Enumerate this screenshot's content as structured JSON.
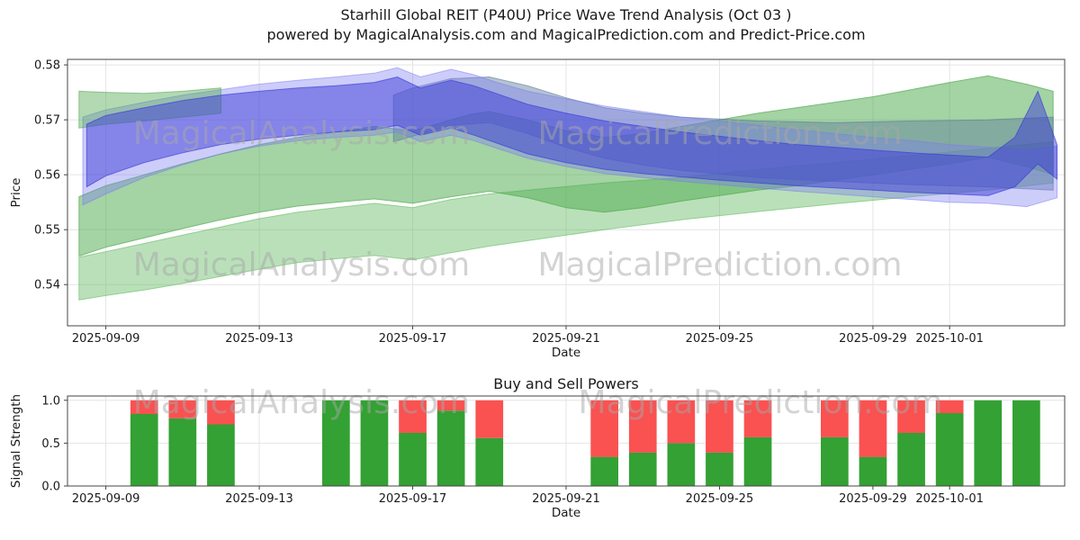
{
  "title": {
    "line1": "Starhill Global REIT (P40U) Price Wave Trend Analysis (Oct 03 )",
    "line2": "powered by MagicalAnalysis.com and MagicalPrediction.com and Predict-Price.com"
  },
  "watermarks": {
    "analysis": "MagicalAnalysis.com",
    "prediction": "MagicalPrediction.com"
  },
  "colors": {
    "grid": "#e4e4e4",
    "spine": "#444444",
    "buy": "#33a133",
    "sell": "#fa5151",
    "tick_text": "#1a1a1a"
  },
  "chart_data": [
    {
      "type": "area",
      "title": "",
      "ylabel": "Price",
      "xlabel": "Date",
      "ylim": [
        0.5325,
        0.581
      ],
      "yticks": [
        0.54,
        0.55,
        0.56,
        0.57,
        0.58
      ],
      "x_domain": [
        "2025-09-08",
        "2025-10-04"
      ],
      "xticks": [
        "2025-09-09",
        "2025-09-13",
        "2025-09-17",
        "2025-09-21",
        "2025-09-25",
        "2025-09-29",
        "2025-10-01"
      ],
      "grid": true,
      "legend": "none",
      "bands": [
        {
          "name": "green-lower",
          "color": "#66bb66",
          "opacity": 0.45,
          "d": [
            0.3,
            1,
            2,
            3,
            4,
            5,
            6,
            7,
            8,
            9,
            10,
            11,
            12,
            14,
            16,
            18,
            20,
            22,
            24,
            25.7
          ],
          "lo": [
            0.5372,
            0.538,
            0.539,
            0.5402,
            0.5415,
            0.5428,
            0.544,
            0.5447,
            0.5453,
            0.5445,
            0.5458,
            0.547,
            0.548,
            0.55,
            0.5518,
            0.5533,
            0.5547,
            0.556,
            0.5572,
            0.5585
          ],
          "hi": [
            0.545,
            0.546,
            0.5475,
            0.549,
            0.5505,
            0.552,
            0.5532,
            0.554,
            0.5548,
            0.554,
            0.5555,
            0.5565,
            0.5572,
            0.5585,
            0.5595,
            0.561,
            0.5622,
            0.5635,
            0.5648,
            0.566
          ]
        },
        {
          "name": "green-mid",
          "color": "#4aa84a",
          "opacity": 0.5,
          "d": [
            0.3,
            1,
            2,
            3,
            4,
            5,
            6,
            7,
            8,
            9,
            10,
            10.5,
            11,
            12,
            13,
            14,
            15,
            16,
            17,
            18,
            19,
            20,
            21,
            22,
            23,
            24,
            25,
            25.7
          ],
          "lo": [
            0.5452,
            0.5468,
            0.5485,
            0.5502,
            0.5518,
            0.5532,
            0.5543,
            0.555,
            0.5556,
            0.5548,
            0.556,
            0.5565,
            0.557,
            0.5558,
            0.554,
            0.5532,
            0.554,
            0.5552,
            0.5562,
            0.5572,
            0.558,
            0.559,
            0.56,
            0.561,
            0.562,
            0.5632,
            0.5615,
            0.56
          ],
          "hi": [
            0.556,
            0.558,
            0.56,
            0.562,
            0.5638,
            0.5655,
            0.5668,
            0.5678,
            0.5688,
            0.568,
            0.57,
            0.571,
            0.5715,
            0.57,
            0.568,
            0.5668,
            0.5675,
            0.5688,
            0.57,
            0.5712,
            0.5722,
            0.5732,
            0.5742,
            0.5755,
            0.5768,
            0.578,
            0.5765,
            0.5752
          ]
        },
        {
          "name": "slate-descend",
          "color": "#5a7a9a",
          "opacity": 0.45,
          "d": [
            8.5,
            9,
            10,
            11,
            12,
            13,
            14,
            15,
            16,
            18,
            20,
            22,
            24,
            25.7
          ],
          "lo": [
            0.566,
            0.567,
            0.569,
            0.5695,
            0.5675,
            0.565,
            0.563,
            0.5618,
            0.5608,
            0.5595,
            0.5588,
            0.5582,
            0.5578,
            0.5572
          ],
          "hi": [
            0.5745,
            0.5758,
            0.5775,
            0.5778,
            0.5762,
            0.574,
            0.5722,
            0.5712,
            0.5705,
            0.5698,
            0.5695,
            0.5698,
            0.57,
            0.5705
          ]
        },
        {
          "name": "blue-wide",
          "color": "#7b7bf2",
          "opacity": 0.38,
          "d": [
            0.4,
            1,
            2,
            3,
            4,
            5,
            6,
            7,
            8,
            8.6,
            9.2,
            10,
            10.6,
            11.2,
            12,
            13,
            14,
            15,
            16,
            17,
            18,
            19,
            20,
            21,
            22,
            23,
            24,
            25,
            25.8
          ],
          "lo": [
            0.5545,
            0.5565,
            0.5595,
            0.5618,
            0.5638,
            0.5652,
            0.5662,
            0.5668,
            0.5672,
            0.5678,
            0.566,
            0.5672,
            0.5662,
            0.5648,
            0.563,
            0.5615,
            0.5602,
            0.5595,
            0.5588,
            0.5582,
            0.5576,
            0.557,
            0.5565,
            0.556,
            0.5555,
            0.555,
            0.5548,
            0.5542,
            0.5558
          ],
          "hi": [
            0.5705,
            0.5718,
            0.5732,
            0.5745,
            0.5755,
            0.5765,
            0.5772,
            0.5778,
            0.5785,
            0.5795,
            0.5778,
            0.5792,
            0.5782,
            0.5768,
            0.5752,
            0.5738,
            0.5725,
            0.5715,
            0.5705,
            0.5698,
            0.569,
            0.5682,
            0.5675,
            0.5668,
            0.5662,
            0.5655,
            0.565,
            0.5645,
            0.5652
          ]
        },
        {
          "name": "green-left-cap",
          "color": "#55aa55",
          "opacity": 0.45,
          "d": [
            0.3,
            1,
            2,
            3,
            4
          ],
          "lo": [
            0.5685,
            0.5692,
            0.5698,
            0.5705,
            0.5712
          ],
          "hi": [
            0.5752,
            0.575,
            0.5748,
            0.5752,
            0.5758
          ]
        },
        {
          "name": "blue-main",
          "color": "#3b3bd8",
          "opacity": 0.5,
          "d": [
            0.5,
            1,
            2,
            3,
            4,
            5,
            6,
            7,
            8,
            8.6,
            9.2,
            10,
            10.6,
            11.3,
            12,
            13,
            14,
            15,
            16,
            17,
            18,
            19,
            20,
            21,
            22,
            23,
            24,
            24.7,
            25.3,
            25.8
          ],
          "lo": [
            0.5578,
            0.5598,
            0.5622,
            0.564,
            0.5655,
            0.5665,
            0.5672,
            0.5678,
            0.5682,
            0.569,
            0.5672,
            0.5685,
            0.5672,
            0.5655,
            0.5638,
            0.5622,
            0.561,
            0.5602,
            0.5596,
            0.559,
            0.5585,
            0.558,
            0.5576,
            0.5572,
            0.5568,
            0.5565,
            0.5562,
            0.5578,
            0.562,
            0.5592
          ],
          "hi": [
            0.5692,
            0.5708,
            0.5722,
            0.5735,
            0.5745,
            0.5752,
            0.5758,
            0.5762,
            0.5768,
            0.5778,
            0.5758,
            0.5772,
            0.5762,
            0.5745,
            0.5728,
            0.5712,
            0.5698,
            0.5688,
            0.5678,
            0.567,
            0.5662,
            0.5655,
            0.565,
            0.5645,
            0.564,
            0.5636,
            0.5632,
            0.5668,
            0.5752,
            0.5655
          ]
        }
      ]
    },
    {
      "type": "bar",
      "title": "Buy and Sell Powers",
      "ylabel": "Signal Strength",
      "xlabel": "Date",
      "ylim": [
        0,
        1.05
      ],
      "yticks": [
        0.0,
        0.5,
        1.0
      ],
      "x_domain": [
        "2025-09-08",
        "2025-10-04"
      ],
      "xticks": [
        "2025-09-09",
        "2025-09-13",
        "2025-09-17",
        "2025-09-21",
        "2025-09-25",
        "2025-09-29",
        "2025-10-01"
      ],
      "grid": true,
      "stacked": true,
      "bars": [
        {
          "date": "2025-09-10",
          "buy": 0.84,
          "sell": 0.16
        },
        {
          "date": "2025-09-11",
          "buy": 0.79,
          "sell": 0.21
        },
        {
          "date": "2025-09-12",
          "buy": 0.72,
          "sell": 0.28
        },
        {
          "date": "2025-09-15",
          "buy": 1.0,
          "sell": 0.0
        },
        {
          "date": "2025-09-16",
          "buy": 1.0,
          "sell": 0.0
        },
        {
          "date": "2025-09-17",
          "buy": 0.62,
          "sell": 0.38
        },
        {
          "date": "2025-09-18",
          "buy": 0.88,
          "sell": 0.12
        },
        {
          "date": "2025-09-19",
          "buy": 0.56,
          "sell": 0.44
        },
        {
          "date": "2025-09-22",
          "buy": 0.34,
          "sell": 0.66
        },
        {
          "date": "2025-09-23",
          "buy": 0.39,
          "sell": 0.61
        },
        {
          "date": "2025-09-24",
          "buy": 0.5,
          "sell": 0.5
        },
        {
          "date": "2025-09-25",
          "buy": 0.39,
          "sell": 0.61
        },
        {
          "date": "2025-09-26",
          "buy": 0.57,
          "sell": 0.43
        },
        {
          "date": "2025-09-28",
          "buy": 0.57,
          "sell": 0.43
        },
        {
          "date": "2025-09-29",
          "buy": 0.34,
          "sell": 0.66
        },
        {
          "date": "2025-09-30",
          "buy": 0.62,
          "sell": 0.38
        },
        {
          "date": "2025-10-01",
          "buy": 0.85,
          "sell": 0.15
        },
        {
          "date": "2025-10-02",
          "buy": 1.0,
          "sell": 0.0
        },
        {
          "date": "2025-10-03",
          "buy": 1.0,
          "sell": 0.0
        }
      ]
    }
  ]
}
